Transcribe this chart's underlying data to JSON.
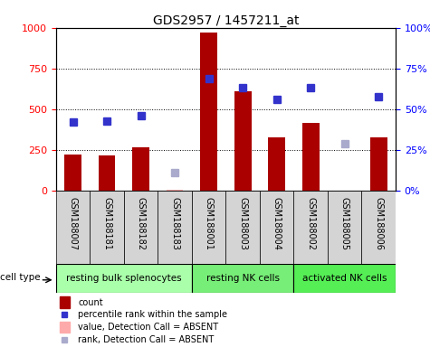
{
  "title": "GDS2957 / 1457211_at",
  "samples": [
    "GSM188007",
    "GSM188181",
    "GSM188182",
    "GSM188183",
    "GSM188001",
    "GSM188003",
    "GSM188004",
    "GSM188002",
    "GSM188005",
    "GSM188006"
  ],
  "counts": [
    220,
    215,
    265,
    5,
    970,
    610,
    330,
    415,
    0,
    330
  ],
  "percentiles": [
    42,
    43,
    46,
    null,
    69,
    63,
    56,
    63,
    null,
    58
  ],
  "absent_value": [
    null,
    null,
    null,
    5,
    null,
    null,
    null,
    null,
    65,
    null
  ],
  "absent_rank": [
    null,
    null,
    null,
    11,
    null,
    null,
    null,
    null,
    29,
    null
  ],
  "detection_call": [
    "P",
    "P",
    "P",
    "A",
    "P",
    "P",
    "P",
    "P",
    "A",
    "P"
  ],
  "groups": [
    {
      "label": "resting bulk splenocytes",
      "start": 0,
      "end": 4
    },
    {
      "label": "resting NK cells",
      "start": 4,
      "end": 7
    },
    {
      "label": "activated NK cells",
      "start": 7,
      "end": 10
    }
  ],
  "group_colors": [
    "#aaffaa",
    "#77ee77",
    "#55ee55"
  ],
  "ylim_left": [
    0,
    1000
  ],
  "ylim_right": [
    0,
    100
  ],
  "left_ticks": [
    0,
    250,
    500,
    750,
    1000
  ],
  "right_ticks": [
    0,
    25,
    50,
    75,
    100
  ],
  "bar_color": "#aa0000",
  "square_color": "#3333cc",
  "absent_bar_color": "#ffaaaa",
  "absent_square_color": "#aaaacc",
  "sample_bg_color": "#d4d4d4",
  "cell_type_label": "cell type",
  "legend_items": [
    {
      "color": "#aa0000",
      "type": "bar",
      "label": "count"
    },
    {
      "color": "#3333cc",
      "type": "square",
      "label": "percentile rank within the sample"
    },
    {
      "color": "#ffaaaa",
      "type": "bar",
      "label": "value, Detection Call = ABSENT"
    },
    {
      "color": "#aaaacc",
      "type": "square",
      "label": "rank, Detection Call = ABSENT"
    }
  ]
}
